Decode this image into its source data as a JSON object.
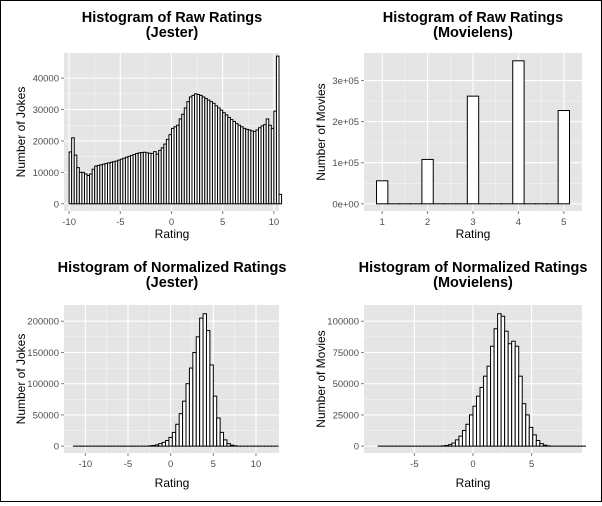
{
  "style": {
    "panel_bg": "#e5e5e5",
    "grid": "#ffffff",
    "bar_fill": "#ffffff",
    "bar_stroke": "#000000",
    "tick_text": "#4d4d4d",
    "text": "#000000"
  },
  "chart_data": [
    {
      "type": "bar",
      "title_line1": "Histogram of Raw Ratings",
      "title_line2": "(Jester)",
      "xlabel": "Rating",
      "ylabel": "Number of Jokes",
      "xlim": [
        -10.5,
        10.5
      ],
      "ylim": [
        -2300,
        48000
      ],
      "xticks": [
        {
          "v": -10,
          "label": "-10"
        },
        {
          "v": -5,
          "label": "-5"
        },
        {
          "v": 0,
          "label": "0"
        },
        {
          "v": 5,
          "label": "5"
        },
        {
          "v": 10,
          "label": "10"
        }
      ],
      "yticks": [
        {
          "v": 0,
          "label": "0"
        },
        {
          "v": 10000,
          "label": "10000"
        },
        {
          "v": 20000,
          "label": "20000"
        },
        {
          "v": 30000,
          "label": "30000"
        },
        {
          "v": 40000,
          "label": "40000"
        }
      ],
      "bin_start": -10.0,
      "bin_width": 0.25,
      "values": [
        16500,
        21000,
        15500,
        11500,
        10000,
        10000,
        9500,
        9000,
        9500,
        11000,
        12000,
        12200,
        12400,
        12600,
        12800,
        13000,
        13200,
        13400,
        13600,
        13900,
        14200,
        14500,
        14800,
        15100,
        15400,
        15700,
        16000,
        16200,
        16300,
        16400,
        16200,
        16100,
        16000,
        16600,
        15800,
        17000,
        17800,
        19000,
        20500,
        22000,
        24000,
        24500,
        25000,
        27000,
        28500,
        30500,
        32500,
        34000,
        34500,
        35000,
        34800,
        34500,
        34000,
        33500,
        33000,
        32500,
        32000,
        31200,
        30500,
        29800,
        29000,
        28300,
        27500,
        26800,
        26200,
        25500,
        25000,
        24500,
        24000,
        23700,
        23500,
        23200,
        23000,
        23500,
        24200,
        24800,
        25200,
        27000,
        25000,
        24000,
        29500,
        47000,
        3000
      ]
    },
    {
      "type": "bar",
      "title_line1": "Histogram of Raw Ratings",
      "title_line2": "(Movielens)",
      "xlabel": "Rating",
      "ylabel": "Number of Movies",
      "xlim": [
        0.6,
        5.4
      ],
      "ylim": [
        -17500,
        367000
      ],
      "xticks": [
        {
          "v": 1,
          "label": "1"
        },
        {
          "v": 2,
          "label": "2"
        },
        {
          "v": 3,
          "label": "3"
        },
        {
          "v": 4,
          "label": "4"
        },
        {
          "v": 5,
          "label": "5"
        }
      ],
      "yticks": [
        {
          "v": 0,
          "label": "0e+00"
        },
        {
          "v": 100000,
          "label": "1e+05"
        },
        {
          "v": 200000,
          "label": "2e+05"
        },
        {
          "v": 300000,
          "label": "3e+05"
        }
      ],
      "bin_start": 0.875,
      "bin_width": 0.25,
      "values": [
        56000,
        0,
        0,
        0,
        108000,
        0,
        0,
        0,
        262000,
        0,
        0,
        0,
        348000,
        0,
        0,
        0,
        227000
      ]
    },
    {
      "type": "bar",
      "title_line1": "Histogram of Normalized Ratings",
      "title_line2": "(Jester)",
      "xlabel": "Rating",
      "ylabel": "Number of Jokes",
      "xlim": [
        -12.5,
        12.7
      ],
      "ylim": [
        -11000,
        226000
      ],
      "xticks": [
        {
          "v": -10,
          "label": "-10"
        },
        {
          "v": -5,
          "label": "-5"
        },
        {
          "v": 0,
          "label": "0"
        },
        {
          "v": 5,
          "label": "5"
        },
        {
          "v": 10,
          "label": "10"
        }
      ],
      "yticks": [
        {
          "v": 0,
          "label": "0"
        },
        {
          "v": 50000,
          "label": "50000"
        },
        {
          "v": 100000,
          "label": "100000"
        },
        {
          "v": 150000,
          "label": "150000"
        },
        {
          "v": 200000,
          "label": "200000"
        }
      ],
      "bin_start": -11.4,
      "bin_width": 0.4,
      "values": [
        0,
        0,
        0,
        0,
        0,
        0,
        0,
        0,
        0,
        0,
        0,
        0,
        0,
        0,
        0,
        0,
        0,
        0,
        0,
        0,
        0,
        0,
        500,
        1000,
        2000,
        4000,
        6000,
        9000,
        14000,
        22000,
        35000,
        52000,
        72000,
        100000,
        125000,
        150000,
        175000,
        205000,
        212000,
        185000,
        130000,
        80000,
        45000,
        22000,
        10000,
        4000,
        1500,
        500,
        0,
        0,
        0,
        0,
        0,
        0,
        0,
        0,
        0,
        0,
        0,
        0
      ]
    },
    {
      "type": "bar",
      "title_line1": "Histogram of Normalized Ratings",
      "title_line2": "(Movielens)",
      "xlabel": "Rating",
      "ylabel": "Number of Movies",
      "xlim": [
        -9.3,
        9.3
      ],
      "ylim": [
        -5500,
        113000
      ],
      "xticks": [
        {
          "v": -5,
          "label": "-5"
        },
        {
          "v": 0,
          "label": "0"
        },
        {
          "v": 5,
          "label": "5"
        }
      ],
      "yticks": [
        {
          "v": 0,
          "label": "0"
        },
        {
          "v": 25000,
          "label": "25000"
        },
        {
          "v": 50000,
          "label": "50000"
        },
        {
          "v": 75000,
          "label": "75000"
        },
        {
          "v": 100000,
          "label": "100000"
        }
      ],
      "bin_start": -8.1,
      "bin_width": 0.3,
      "values": [
        0,
        0,
        0,
        0,
        0,
        0,
        0,
        0,
        0,
        0,
        0,
        0,
        0,
        0,
        0,
        0,
        0,
        0,
        200,
        500,
        1200,
        2500,
        5000,
        8000,
        12500,
        17500,
        25000,
        32000,
        40000,
        47000,
        56000,
        64000,
        80000,
        94000,
        106000,
        104000,
        92000,
        82000,
        84000,
        80000,
        56000,
        34000,
        25000,
        15000,
        9000,
        4500,
        2000,
        800,
        200,
        0,
        0,
        0,
        0,
        0,
        0,
        0,
        0,
        0,
        0
      ]
    }
  ]
}
